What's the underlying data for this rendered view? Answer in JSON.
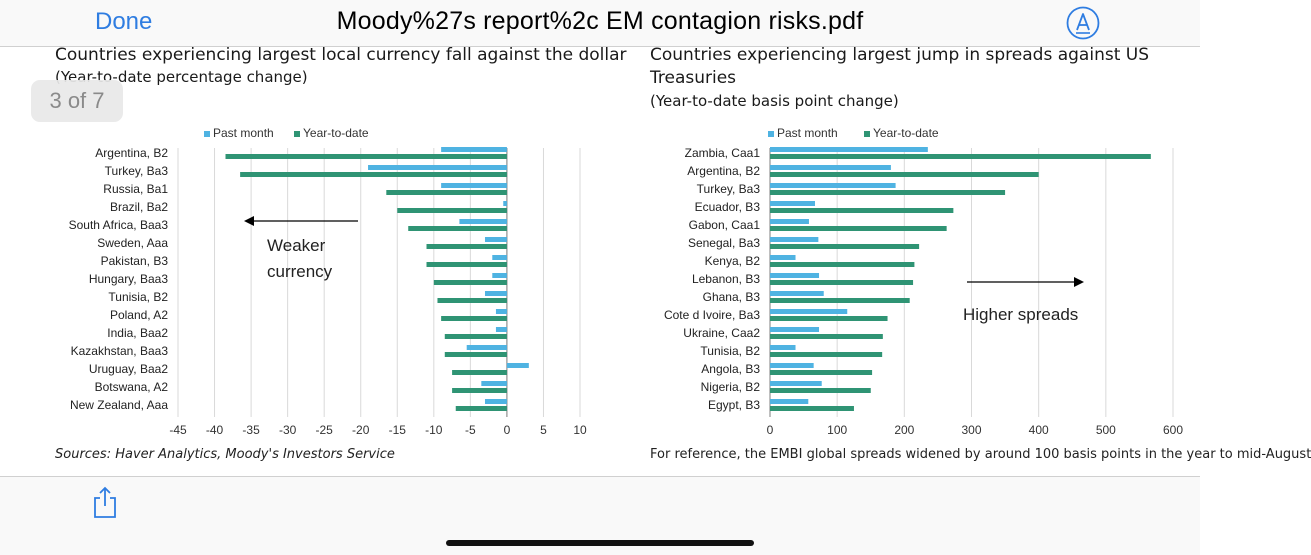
{
  "nav": {
    "done_label": "Done",
    "title": "Moody%27s report%2c EM contagion risks.pdf",
    "markup_icon": "markup-pen-icon"
  },
  "page_indicator": "3 of 7",
  "left_panel": {
    "title": "Countries experiencing largest local currency fall against the dollar",
    "subtitle": "(Year-to-date percentage change)",
    "annotation": [
      "Weaker",
      "currency"
    ],
    "source": "Sources: Haver Analytics, Moody's Investors Service"
  },
  "right_panel": {
    "title_line1": "Countries experiencing largest jump in spreads against US",
    "title_line2": "Treasuries",
    "subtitle": "(Year-to-date basis point change)",
    "annotation": "Higher spreads",
    "footnote": "For reference, the EMBI global spreads widened by around 100 basis points in the year to mid-August"
  },
  "toolbar": {
    "share_icon": "share-icon"
  },
  "colors": {
    "past_month": "#4fb3e2",
    "year_to_date": "#2f9474",
    "accent": "#2f7de1"
  },
  "chart_data": [
    {
      "type": "bar",
      "orientation": "horizontal",
      "categories": [
        "Argentina, B2",
        "Turkey, Ba3",
        "Russia, Ba1",
        "Brazil, Ba2",
        "South Africa, Baa3",
        "Sweden, Aaa",
        "Pakistan, B3",
        "Hungary, Baa3",
        "Tunisia, B2",
        "Poland, A2",
        "India, Baa2",
        "Kazakhstan, Baa3",
        "Uruguay, Baa2",
        "Botswana, A2",
        "New Zealand, Aaa"
      ],
      "series": [
        {
          "name": "Past month",
          "values": [
            -9,
            -19,
            -9,
            -0.5,
            -6.5,
            -3,
            -2,
            -2,
            -3,
            -1.5,
            -1.5,
            -5.5,
            3,
            -3.5,
            -3
          ]
        },
        {
          "name": "Year-to-date",
          "values": [
            -38.5,
            -36.5,
            -16.5,
            -15,
            -13.5,
            -11,
            -11,
            -10,
            -9.5,
            -9,
            -8.5,
            -8.5,
            -7.5,
            -7.5,
            -7
          ]
        }
      ],
      "xlim": [
        -45,
        10
      ],
      "xticks": [
        "-45",
        "-40",
        "-35",
        "-30",
        "-25",
        "-20",
        "-15",
        "-10",
        "-5",
        "0",
        "5",
        "10"
      ],
      "grid": true,
      "legend": "top"
    },
    {
      "type": "bar",
      "orientation": "horizontal",
      "categories": [
        "Zambia, Caa1",
        "Argentina, B2",
        "Turkey, Ba3",
        "Ecuador, B3",
        "Gabon, Caa1",
        "Senegal, Ba3",
        "Kenya, B2",
        "Lebanon, B3",
        "Ghana, B3",
        "Cote d Ivoire, Ba3",
        "Ukraine, Caa2",
        "Tunisia, B2",
        "Angola, B3",
        "Nigeria, B2",
        "Egypt, B3"
      ],
      "series": [
        {
          "name": "Past month",
          "values": [
            235,
            180,
            187,
            67,
            58,
            72,
            38,
            73,
            80,
            115,
            73,
            38,
            65,
            77,
            57
          ]
        },
        {
          "name": "Year-to-date",
          "values": [
            567,
            400,
            350,
            273,
            263,
            222,
            215,
            213,
            208,
            175,
            168,
            167,
            152,
            150,
            125
          ]
        }
      ],
      "xlim": [
        0,
        600
      ],
      "xticks": [
        "0",
        "100",
        "200",
        "300",
        "400",
        "500",
        "600"
      ],
      "grid": true,
      "legend": "top"
    }
  ]
}
